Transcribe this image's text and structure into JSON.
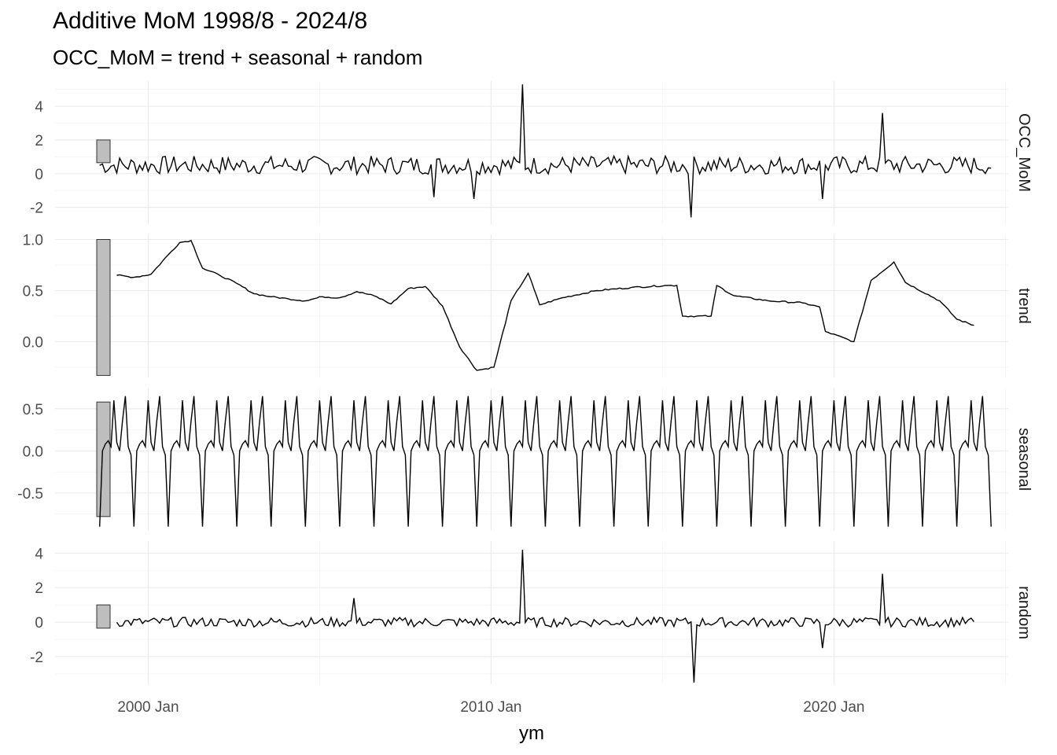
{
  "chart_data": {
    "type": "line",
    "title": "Additive MoM 1998/8 - 2024/8",
    "subtitle": "OCC_MoM = trend + seasonal + random",
    "xlabel": "ym",
    "x_range": [
      "1998-08",
      "2024-08"
    ],
    "x_ticks": [
      {
        "date": "2000-01",
        "label": "2000 Jan"
      },
      {
        "date": "2010-01",
        "label": "2010 Jan"
      },
      {
        "date": "2020-01",
        "label": "2020 Jan"
      }
    ],
    "x_minor_ticks": [
      "2005-01",
      "2015-01",
      "2025-01"
    ],
    "grid": true,
    "facets": [
      {
        "name": "OCC_MoM",
        "ylim": [
          -3,
          5.5
        ],
        "y_ticks": [
          4,
          2,
          0,
          -2
        ],
        "y_tick_labels": [
          "4",
          "2",
          "0",
          "-2"
        ],
        "scale_bar": [
          0.65,
          2.0
        ],
        "series": {
          "start": "1998-08",
          "end": "2024-08",
          "base": 0.5,
          "noise": 0.55,
          "spikes": [
            {
              "date": "2010-12",
              "value": 5.3
            },
            {
              "date": "2009-07",
              "value": -1.5
            },
            {
              "date": "2008-05",
              "value": -1.4
            },
            {
              "date": "2015-11",
              "value": -2.6
            },
            {
              "date": "2019-09",
              "value": -1.5
            },
            {
              "date": "2021-06",
              "value": 3.6
            }
          ]
        }
      },
      {
        "name": "trend",
        "ylim": [
          -0.35,
          1.05
        ],
        "y_ticks": [
          1.0,
          0.5,
          0.0
        ],
        "y_tick_labels": [
          "1.0",
          "0.5",
          "0.0"
        ],
        "scale_bar": [
          -0.33,
          1.0
        ],
        "series": {
          "knots": [
            [
              "1999-02",
              0.65
            ],
            [
              "1999-08",
              0.63
            ],
            [
              "2000-02",
              0.66
            ],
            [
              "2000-08",
              0.85
            ],
            [
              "2000-12",
              0.97
            ],
            [
              "2001-04",
              0.99
            ],
            [
              "2001-08",
              0.72
            ],
            [
              "2002-02",
              0.65
            ],
            [
              "2002-08",
              0.57
            ],
            [
              "2003-02",
              0.47
            ],
            [
              "2003-08",
              0.44
            ],
            [
              "2004-02",
              0.42
            ],
            [
              "2004-08",
              0.4
            ],
            [
              "2005-02",
              0.44
            ],
            [
              "2005-08",
              0.43
            ],
            [
              "2006-02",
              0.49
            ],
            [
              "2006-08",
              0.45
            ],
            [
              "2007-02",
              0.37
            ],
            [
              "2007-08",
              0.52
            ],
            [
              "2008-02",
              0.54
            ],
            [
              "2008-08",
              0.35
            ],
            [
              "2009-02",
              -0.05
            ],
            [
              "2009-08",
              -0.28
            ],
            [
              "2010-02",
              -0.25
            ],
            [
              "2010-08",
              0.4
            ],
            [
              "2011-02",
              0.67
            ],
            [
              "2011-06",
              0.36
            ],
            [
              "2012-02",
              0.43
            ],
            [
              "2013-02",
              0.5
            ],
            [
              "2014-02",
              0.53
            ],
            [
              "2015-02",
              0.55
            ],
            [
              "2015-06",
              0.55
            ],
            [
              "2015-08",
              0.25
            ],
            [
              "2016-06",
              0.25
            ],
            [
              "2016-08",
              0.55
            ],
            [
              "2017-02",
              0.45
            ],
            [
              "2018-02",
              0.4
            ],
            [
              "2019-02",
              0.38
            ],
            [
              "2019-08",
              0.34
            ],
            [
              "2019-10",
              0.1
            ],
            [
              "2020-08",
              0.0
            ],
            [
              "2021-02",
              0.6
            ],
            [
              "2021-10",
              0.78
            ],
            [
              "2022-02",
              0.58
            ],
            [
              "2023-02",
              0.4
            ],
            [
              "2023-08",
              0.22
            ],
            [
              "2024-02",
              0.16
            ]
          ]
        }
      },
      {
        "name": "seasonal",
        "ylim": [
          -0.95,
          0.75
        ],
        "y_ticks": [
          0.5,
          0.0,
          -0.5
        ],
        "y_tick_labels": [
          "0.5",
          "0.0",
          "-0.5"
        ],
        "scale_bar": [
          -0.78,
          0.58
        ],
        "series": {
          "start": "1998-08",
          "end": "2024-08",
          "pattern": [
            -0.9,
            0.0,
            0.08,
            0.12,
            0.05,
            0.6,
            0.1,
            0.0,
            0.35,
            0.65,
            0.05,
            -0.05
          ]
        }
      },
      {
        "name": "random",
        "ylim": [
          -3.6,
          4.7
        ],
        "y_ticks": [
          4,
          2,
          0,
          -2
        ],
        "y_tick_labels": [
          "4",
          "2",
          "0",
          "-2"
        ],
        "scale_bar": [
          -0.35,
          1.0
        ],
        "series": {
          "start": "1999-02",
          "end": "2024-02",
          "base": 0.0,
          "noise": 0.28,
          "spikes": [
            {
              "date": "2010-12",
              "value": 4.2
            },
            {
              "date": "2006-01",
              "value": 1.4
            },
            {
              "date": "2015-12",
              "value": -3.5
            },
            {
              "date": "2019-09",
              "value": -1.5
            },
            {
              "date": "2021-06",
              "value": 2.8
            }
          ]
        }
      }
    ]
  }
}
